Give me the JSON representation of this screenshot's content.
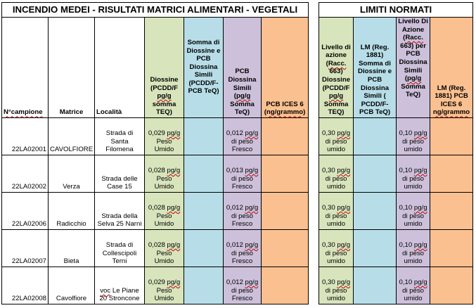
{
  "titles": {
    "main": "INCENDIO MEDEI - RISULTATI MATRICI ALIMENTARI - VEGETALI",
    "limits": "LIMITI NORMATI"
  },
  "headers": {
    "campione": "N°campione",
    "matrice": "Matrice",
    "localita": "Località",
    "diossine": "Diossine (PCDD/F pg/g somma TEQ)",
    "somma": "Somma di Diossine e PCB Diossina Simili (PCDD/F-PCB TeQ)",
    "pcb_dl": "PCB Diossina Simili (pg/g Somma TeQ)",
    "pcb_ices": "PCB ICES 6 (ng/grammo)",
    "lim_diossine": "Livello di azione (Racc. 663) Diossine (PCDD/F pg/g Somma TEQ)",
    "lim_somma": "LM (Reg. 1881) Somma di Diossine e PCB Diossina Simili ( PCDD/F-PCB TeQ)",
    "lim_pcb_dl": "Livello Di Azione (Racc. 663) per PCB Diossina Simili (pg/g Somma TeQ)",
    "lim_ices": "LM (Reg. 1881) PCB ICES 6 ng/grammo"
  },
  "rows": [
    {
      "campione": "22LA02001",
      "matrice": "CAVOLFIORE",
      "localita": "Strada di Santa Filomena",
      "diossine": "0,029 pg/g Peso Umido",
      "pcb_dl": "0,012 pg/g di peso Fresco",
      "lim_diossine": "0,30 pg/g di peso umido",
      "lim_pcb_dl": "0,10 pg/g di peso umido"
    },
    {
      "campione": "22LA02002",
      "matrice": "Verza",
      "localita": "Strada delle Case 15",
      "diossine": "0,028 pg/g Peso Umido",
      "pcb_dl": "0,013 pg/g di peso Fresco",
      "lim_diossine": "0,30 pg/g di peso umido",
      "lim_pcb_dl": "0,10 pg/g di peso umido"
    },
    {
      "campione": "22LA02006",
      "matrice": "Radicchio",
      "localita": "Strada della Selva 25 Narni",
      "diossine": "0,028 pg/g Peso Umido",
      "pcb_dl": "0,012 pg/g di peso Fresco",
      "lim_diossine": "0,30 pg/g di peso umido",
      "lim_pcb_dl": "0,10 pg/g di peso umido"
    },
    {
      "campione": "22LA02007",
      "matrice": "Bieta",
      "localita": "Strada di Collescipoli Terni",
      "diossine": "0,028 pg/g Peso Umido",
      "pcb_dl": "0,012 pg/g di peso Fresco",
      "lim_diossine": "0,30 pg/g di peso umido",
      "lim_pcb_dl": "0,10 pg/g di peso umido"
    },
    {
      "campione": "22LA02008",
      "matrice": "Cavolfiore",
      "localita": "voc Le Piane 20 Stroncone",
      "diossine": "0,029 pg/g Peso Umido",
      "pcb_dl": "0,012 pg/g di peso Fresco",
      "lim_diossine": "0,30 pg/g di peso umido",
      "lim_pcb_dl": "0,10 pg/g di peso umido"
    }
  ]
}
